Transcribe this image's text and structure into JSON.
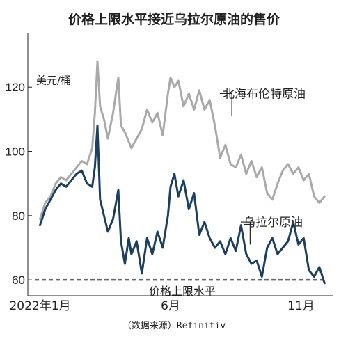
{
  "chart_data": {
    "type": "line",
    "title": "价格上限水平接近乌拉尔原油的售价",
    "ylabel": "美元/桶",
    "source": "（数据来源）Refinitiv",
    "x_tick_labels": [
      {
        "x": 0,
        "label": "2022年1月"
      },
      {
        "x": 5,
        "label": "6月"
      },
      {
        "x": 10,
        "label": "11月"
      }
    ],
    "xlim": [
      -0.2,
      11.0
    ],
    "yticks": [
      60,
      80,
      100,
      120
    ],
    "ylim": [
      57,
      135
    ],
    "grid": false,
    "series": [
      {
        "name": "北海布伦特原油",
        "color": "#a9a9a9",
        "x": [
          0,
          0.2,
          0.4,
          0.6,
          0.8,
          1.0,
          1.2,
          1.4,
          1.6,
          1.8,
          2.0,
          2.1,
          2.2,
          2.3,
          2.45,
          2.6,
          2.8,
          3.0,
          3.1,
          3.25,
          3.4,
          3.5,
          3.7,
          3.9,
          4.1,
          4.3,
          4.5,
          4.7,
          4.9,
          5.0,
          5.15,
          5.3,
          5.5,
          5.7,
          5.9,
          6.1,
          6.3,
          6.5,
          6.7,
          6.9,
          7.1,
          7.3,
          7.5,
          7.7,
          7.9,
          8.1,
          8.3,
          8.5,
          8.7,
          8.9,
          9.1,
          9.3,
          9.5,
          9.7,
          9.9,
          10.1,
          10.3,
          10.5,
          10.7,
          10.9
        ],
        "values": [
          79,
          84,
          86,
          90,
          92,
          91,
          93,
          95,
          97,
          96,
          101,
          112,
          128,
          114,
          110,
          104,
          112,
          123,
          108,
          106,
          103,
          101,
          104,
          107,
          113,
          109,
          112,
          105,
          118,
          123,
          120,
          122,
          114,
          118,
          113,
          119,
          113,
          116,
          108,
          98,
          102,
          96,
          95,
          99,
          93,
          97,
          92,
          95,
          87,
          85,
          90,
          94,
          96,
          93,
          95,
          91,
          93,
          86,
          84,
          86
        ]
      },
      {
        "name": "乌拉尔原油",
        "color": "#1d3f5e",
        "x": [
          0,
          0.2,
          0.4,
          0.6,
          0.8,
          1.0,
          1.2,
          1.4,
          1.6,
          1.8,
          2.0,
          2.1,
          2.2,
          2.3,
          2.45,
          2.6,
          2.8,
          3.0,
          3.1,
          3.25,
          3.4,
          3.5,
          3.7,
          3.9,
          4.1,
          4.3,
          4.5,
          4.7,
          4.9,
          5.0,
          5.15,
          5.3,
          5.5,
          5.7,
          5.9,
          6.1,
          6.3,
          6.5,
          6.7,
          6.9,
          7.1,
          7.3,
          7.5,
          7.7,
          7.9,
          8.1,
          8.3,
          8.5,
          8.7,
          8.9,
          9.1,
          9.3,
          9.5,
          9.7,
          9.9,
          10.1,
          10.3,
          10.5,
          10.7,
          10.9
        ],
        "values": [
          77,
          82,
          85,
          88,
          90,
          89,
          91,
          93,
          94,
          90,
          89,
          95,
          108,
          85,
          80,
          75,
          79,
          88,
          72,
          65,
          73,
          68,
          72,
          62,
          73,
          68,
          75,
          70,
          80,
          89,
          93,
          86,
          91,
          82,
          87,
          74,
          78,
          73,
          70,
          72,
          68,
          73,
          69,
          77,
          68,
          65,
          66,
          61,
          70,
          73,
          68,
          70,
          72,
          78,
          71,
          73,
          63,
          61,
          64,
          59
        ]
      }
    ],
    "reference_line": {
      "value": 60,
      "label": "价格上限水平",
      "style": "dashed",
      "color": "#666666"
    }
  }
}
